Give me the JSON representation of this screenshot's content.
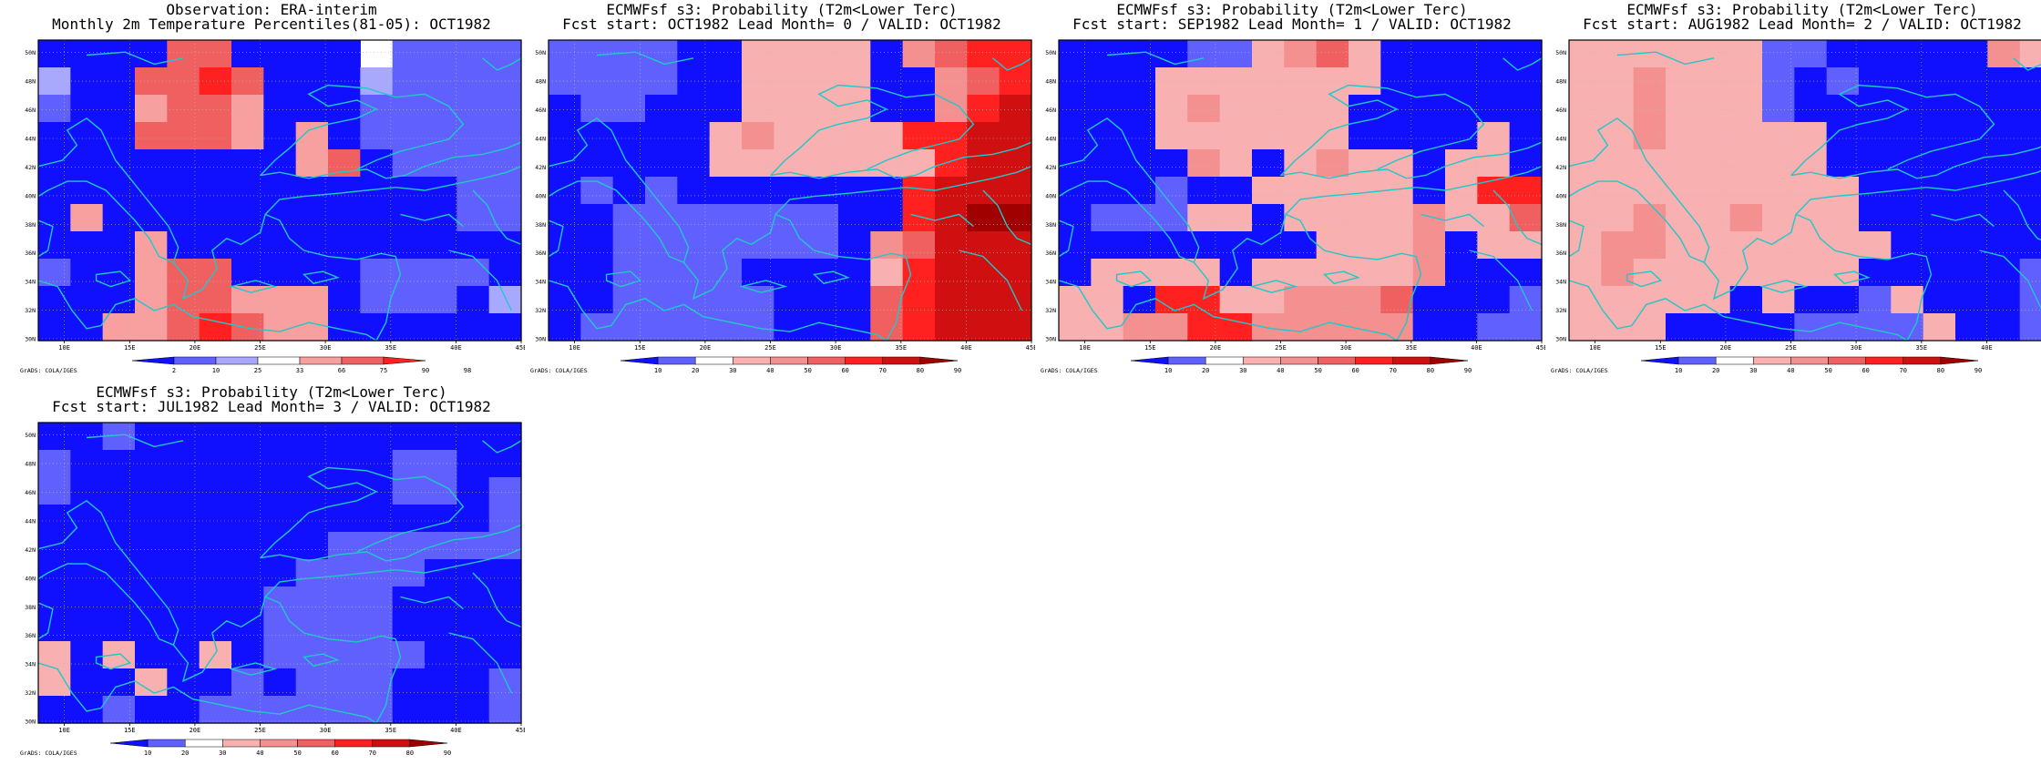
{
  "lon_ticks": [
    "10E",
    "15E",
    "20E",
    "25E",
    "30E",
    "35E",
    "40E",
    "45E"
  ],
  "lat_ticks": [
    "30N",
    "32N",
    "34N",
    "36N",
    "38N",
    "40N",
    "42N",
    "44N",
    "46N",
    "48N",
    "50N"
  ],
  "credit": "GrADS: COLA/IGES",
  "colors": {
    "coast": "#20c8c8",
    "obs_scale": [
      "#1010ff",
      "#6060ff",
      "#a8a8ff",
      "#ffffff",
      "#f8a0a0",
      "#f06060",
      "#ff2020"
    ],
    "prob_scale": [
      "#1010ff",
      "#6060ff",
      "#ffffff",
      "#f8b0b0",
      "#f49090",
      "#f06060",
      "#ff2020",
      "#d01010",
      "#a00000"
    ]
  },
  "panels": [
    {
      "title1": "Observation: ERA-interim",
      "title2": "Monthly 2m Temperature Percentiles(81-05): OCT1982",
      "colorbar_labels": [
        "2",
        "10",
        "25",
        "33",
        "66",
        "75",
        "90",
        "98"
      ],
      "scale": "obs",
      "cells": [
        [
          0,
          0,
          0,
          0,
          5,
          5,
          0,
          0,
          0,
          0,
          3,
          1,
          1,
          1,
          1
        ],
        [
          2,
          0,
          0,
          5,
          5,
          6,
          5,
          0,
          0,
          0,
          2,
          1,
          1,
          1,
          1
        ],
        [
          1,
          0,
          0,
          4,
          5,
          5,
          4,
          0,
          0,
          0,
          1,
          1,
          1,
          1,
          1
        ],
        [
          0,
          0,
          0,
          5,
          5,
          5,
          4,
          0,
          4,
          0,
          1,
          1,
          1,
          1,
          1
        ],
        [
          0,
          0,
          0,
          0,
          0,
          0,
          0,
          0,
          4,
          5,
          0,
          1,
          1,
          1,
          1
        ],
        [
          0,
          0,
          0,
          0,
          0,
          0,
          0,
          0,
          0,
          0,
          0,
          0,
          0,
          1,
          1
        ],
        [
          0,
          4,
          0,
          0,
          0,
          0,
          0,
          0,
          0,
          0,
          0,
          0,
          0,
          1,
          1
        ],
        [
          0,
          0,
          0,
          4,
          0,
          0,
          0,
          0,
          0,
          0,
          0,
          0,
          0,
          0,
          0
        ],
        [
          1,
          0,
          0,
          4,
          5,
          5,
          0,
          0,
          0,
          0,
          1,
          1,
          1,
          1,
          0
        ],
        [
          0,
          0,
          0,
          4,
          5,
          5,
          4,
          4,
          4,
          0,
          1,
          1,
          1,
          0,
          2
        ],
        [
          0,
          0,
          4,
          4,
          5,
          6,
          5,
          4,
          4,
          0,
          0,
          0,
          0,
          0,
          0
        ]
      ]
    },
    {
      "title1": "ECMWFsf s3: Probability (T2m<Lower Terc)",
      "title2": "Fcst start: OCT1982  Lead Month= 0 / VALID: OCT1982",
      "colorbar_labels": [
        "10",
        "20",
        "30",
        "40",
        "50",
        "60",
        "70",
        "80",
        "90"
      ],
      "scale": "prob",
      "cells": [
        [
          1,
          1,
          1,
          1,
          0,
          0,
          3,
          3,
          3,
          3,
          0,
          4,
          5,
          6,
          6
        ],
        [
          1,
          1,
          1,
          1,
          0,
          0,
          3,
          3,
          3,
          3,
          0,
          0,
          4,
          5,
          6
        ],
        [
          0,
          1,
          1,
          0,
          0,
          0,
          3,
          3,
          3,
          3,
          0,
          0,
          4,
          6,
          7
        ],
        [
          0,
          0,
          0,
          0,
          0,
          3,
          4,
          3,
          3,
          3,
          3,
          6,
          6,
          7,
          7
        ],
        [
          0,
          0,
          0,
          0,
          0,
          3,
          3,
          3,
          3,
          3,
          3,
          3,
          6,
          7,
          7
        ],
        [
          0,
          1,
          0,
          1,
          0,
          0,
          0,
          0,
          0,
          0,
          0,
          6,
          7,
          7,
          7
        ],
        [
          0,
          0,
          1,
          1,
          1,
          1,
          1,
          1,
          1,
          0,
          0,
          6,
          7,
          8,
          8
        ],
        [
          0,
          0,
          1,
          1,
          1,
          1,
          1,
          1,
          1,
          0,
          4,
          5,
          7,
          7,
          7
        ],
        [
          0,
          0,
          1,
          1,
          1,
          1,
          0,
          0,
          0,
          0,
          3,
          6,
          7,
          7,
          7
        ],
        [
          0,
          0,
          1,
          1,
          1,
          1,
          1,
          0,
          0,
          0,
          5,
          6,
          7,
          7,
          7
        ],
        [
          0,
          1,
          1,
          1,
          1,
          1,
          1,
          0,
          0,
          0,
          5,
          6,
          7,
          7,
          7
        ]
      ]
    },
    {
      "title1": "ECMWFsf s3: Probability (T2m<Lower Terc)",
      "title2": "Fcst start: SEP1982  Lead Month= 1 / VALID: OCT1982",
      "colorbar_labels": [
        "10",
        "20",
        "30",
        "40",
        "50",
        "60",
        "70",
        "80",
        "90"
      ],
      "scale": "prob",
      "cells": [
        [
          0,
          0,
          0,
          0,
          1,
          1,
          3,
          4,
          5,
          3,
          0,
          0,
          0,
          0,
          0
        ],
        [
          0,
          0,
          0,
          3,
          3,
          3,
          3,
          3,
          3,
          3,
          0,
          0,
          0,
          0,
          0
        ],
        [
          0,
          0,
          0,
          3,
          4,
          3,
          3,
          3,
          3,
          0,
          0,
          0,
          0,
          0,
          0
        ],
        [
          0,
          0,
          0,
          3,
          3,
          3,
          3,
          3,
          3,
          0,
          0,
          0,
          0,
          3,
          0
        ],
        [
          0,
          0,
          0,
          0,
          4,
          3,
          0,
          3,
          4,
          3,
          3,
          0,
          3,
          3,
          0
        ],
        [
          0,
          0,
          0,
          1,
          0,
          0,
          3,
          3,
          3,
          3,
          3,
          0,
          3,
          6,
          6
        ],
        [
          0,
          1,
          1,
          1,
          3,
          3,
          0,
          3,
          3,
          3,
          3,
          4,
          3,
          3,
          5
        ],
        [
          0,
          0,
          0,
          0,
          0,
          0,
          0,
          0,
          3,
          3,
          3,
          4,
          0,
          3,
          3
        ],
        [
          0,
          3,
          3,
          3,
          3,
          0,
          3,
          3,
          3,
          3,
          3,
          4,
          0,
          0,
          0
        ],
        [
          3,
          3,
          0,
          6,
          6,
          3,
          3,
          4,
          4,
          4,
          5,
          0,
          0,
          0,
          1
        ],
        [
          3,
          3,
          4,
          4,
          6,
          6,
          4,
          4,
          4,
          4,
          4,
          0,
          0,
          1,
          1
        ]
      ]
    },
    {
      "title1": "ECMWFsf s3: Probability (T2m<Lower Terc)",
      "title2": "Fcst start: AUG1982  Lead Month= 2 / VALID: OCT1982",
      "colorbar_labels": [
        "10",
        "20",
        "30",
        "40",
        "50",
        "60",
        "70",
        "80",
        "90"
      ],
      "scale": "prob",
      "cells": [
        [
          3,
          3,
          3,
          3,
          3,
          3,
          1,
          1,
          0,
          0,
          0,
          0,
          0,
          4,
          3
        ],
        [
          3,
          3,
          4,
          3,
          3,
          3,
          1,
          0,
          1,
          0,
          0,
          0,
          0,
          0,
          0
        ],
        [
          3,
          3,
          4,
          3,
          3,
          3,
          1,
          0,
          0,
          0,
          0,
          0,
          0,
          0,
          0
        ],
        [
          3,
          3,
          4,
          3,
          3,
          3,
          3,
          3,
          0,
          0,
          0,
          0,
          0,
          0,
          0
        ],
        [
          3,
          3,
          3,
          3,
          3,
          3,
          3,
          3,
          0,
          0,
          0,
          0,
          0,
          0,
          0
        ],
        [
          3,
          3,
          3,
          3,
          3,
          3,
          3,
          3,
          3,
          0,
          0,
          0,
          0,
          0,
          0
        ],
        [
          3,
          3,
          4,
          3,
          3,
          4,
          3,
          3,
          3,
          0,
          0,
          0,
          0,
          0,
          0
        ],
        [
          3,
          4,
          4,
          3,
          3,
          3,
          3,
          3,
          3,
          3,
          0,
          0,
          0,
          0,
          0
        ],
        [
          3,
          4,
          3,
          3,
          3,
          3,
          3,
          3,
          3,
          0,
          0,
          0,
          0,
          0,
          1
        ],
        [
          3,
          3,
          3,
          3,
          3,
          0,
          3,
          0,
          0,
          1,
          3,
          0,
          0,
          0,
          1
        ],
        [
          3,
          3,
          3,
          0,
          0,
          0,
          0,
          1,
          1,
          1,
          1,
          3,
          0,
          0,
          1
        ]
      ]
    },
    {
      "title1": "ECMWFsf s3: Probability (T2m<Lower Terc)",
      "title2": "Fcst start: JUL1982  Lead Month= 3 / VALID: OCT1982",
      "colorbar_labels": [
        "10",
        "20",
        "30",
        "40",
        "50",
        "60",
        "70",
        "80",
        "90"
      ],
      "scale": "prob",
      "cells": [
        [
          0,
          0,
          1,
          0,
          0,
          0,
          0,
          0,
          0,
          0,
          0,
          0,
          0,
          0,
          0
        ],
        [
          1,
          0,
          0,
          0,
          0,
          0,
          0,
          0,
          0,
          0,
          0,
          1,
          1,
          0,
          0
        ],
        [
          1,
          0,
          0,
          0,
          0,
          0,
          0,
          0,
          0,
          0,
          0,
          1,
          1,
          0,
          1
        ],
        [
          0,
          0,
          0,
          0,
          0,
          0,
          0,
          0,
          0,
          0,
          0,
          0,
          0,
          0,
          1
        ],
        [
          0,
          0,
          0,
          0,
          0,
          0,
          0,
          0,
          0,
          1,
          1,
          1,
          1,
          1,
          1
        ],
        [
          0,
          0,
          0,
          0,
          0,
          0,
          0,
          0,
          1,
          1,
          1,
          1,
          0,
          0,
          0
        ],
        [
          0,
          0,
          0,
          0,
          0,
          0,
          0,
          1,
          1,
          1,
          1,
          0,
          0,
          0,
          0
        ],
        [
          0,
          0,
          0,
          0,
          0,
          0,
          0,
          1,
          1,
          1,
          1,
          0,
          0,
          0,
          0
        ],
        [
          3,
          0,
          3,
          0,
          0,
          3,
          0,
          1,
          1,
          1,
          1,
          1,
          0,
          0,
          0
        ],
        [
          3,
          0,
          0,
          3,
          0,
          0,
          1,
          0,
          1,
          1,
          1,
          0,
          0,
          0,
          1
        ],
        [
          0,
          0,
          1,
          0,
          0,
          1,
          1,
          1,
          1,
          1,
          1,
          0,
          0,
          0,
          1
        ]
      ]
    }
  ]
}
